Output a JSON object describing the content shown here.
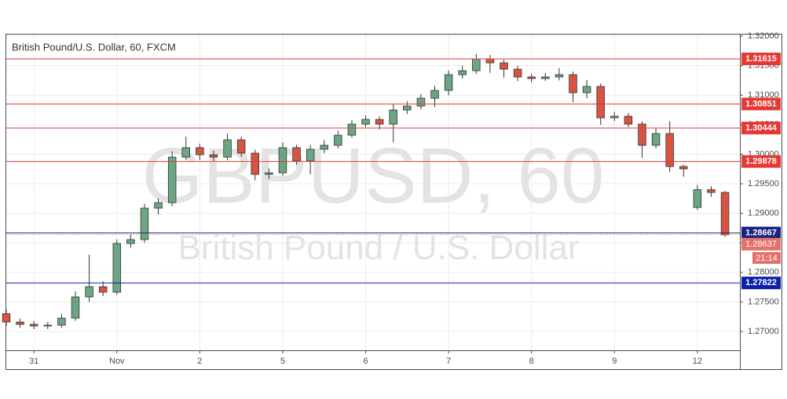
{
  "chart_data": {
    "type": "candlestick",
    "title": "British Pound/U.S. Dollar, 60, FXCM",
    "watermark": "GBPUSD, 60",
    "watermark_subtitle": "British Pound / U.S. Dollar",
    "x": [
      0,
      4,
      8,
      12,
      16,
      20,
      24,
      28,
      32,
      36,
      40,
      44,
      48,
      52,
      56,
      60,
      64,
      68,
      72,
      76,
      80,
      84,
      88,
      92,
      96,
      100,
      104,
      108,
      112,
      116,
      120,
      124,
      128,
      132,
      136,
      140,
      144,
      148,
      152,
      156,
      160,
      164,
      168,
      172,
      176,
      180,
      184,
      188,
      192,
      196,
      200,
      204,
      208
    ],
    "open": [
      1.273,
      1.2716,
      1.2712,
      1.27093,
      1.27106,
      1.27226,
      1.27585,
      1.27758,
      1.27665,
      1.28489,
      1.28556,
      1.29088,
      1.29181,
      1.29952,
      1.30112,
      1.29992,
      1.29952,
      1.30245,
      1.30019,
      1.2966,
      1.29686,
      1.30112,
      1.29886,
      1.30085,
      1.30152,
      1.30324,
      1.30511,
      1.3059,
      1.30511,
      1.3075,
      1.30816,
      1.30949,
      1.31082,
      1.31348,
      1.31415,
      1.31614,
      1.31548,
      1.31441,
      1.31309,
      1.31282,
      1.31309,
      1.31348,
      1.31043,
      1.31149,
      1.30617,
      1.30644,
      1.30511,
      1.30152,
      1.30351,
      1.29793,
      1.291,
      1.294,
      1.29354
    ],
    "high": [
      1.2738,
      1.2722,
      1.2718,
      1.2716,
      1.273,
      1.2768,
      1.283,
      1.2785,
      1.2856,
      1.2864,
      1.2916,
      1.2925,
      1.3005,
      1.303,
      1.3018,
      1.3006,
      1.3035,
      1.303,
      1.3008,
      1.2976,
      1.302,
      1.3016,
      1.3016,
      1.3024,
      1.304,
      1.3058,
      1.3066,
      1.3064,
      1.3085,
      1.309,
      1.3102,
      1.3116,
      1.3142,
      1.315,
      1.317,
      1.3168,
      1.316,
      1.315,
      1.3136,
      1.3138,
      1.3146,
      1.314,
      1.3126,
      1.312,
      1.3072,
      1.307,
      1.3056,
      1.3044,
      1.3056,
      1.2982,
      1.2948,
      1.2946,
      1.2938
    ],
    "low": [
      1.271,
      1.2706,
      1.2704,
      1.2704,
      1.2706,
      1.2718,
      1.275,
      1.276,
      1.2762,
      1.2842,
      1.285,
      1.2898,
      1.2912,
      1.299,
      1.299,
      1.2988,
      1.299,
      1.2996,
      1.2956,
      1.2958,
      1.2964,
      1.2982,
      1.2966,
      1.3002,
      1.301,
      1.3028,
      1.3046,
      1.3042,
      1.302,
      1.3068,
      1.3076,
      1.308,
      1.31,
      1.3128,
      1.3136,
      1.3138,
      1.313,
      1.3124,
      1.3122,
      1.3124,
      1.3125,
      1.3088,
      1.3095,
      1.305,
      1.3056,
      1.3046,
      1.2994,
      1.301,
      1.297,
      1.2962,
      1.2906,
      1.2928,
      1.286
    ],
    "close": [
      1.2716,
      1.2712,
      1.27093,
      1.27106,
      1.27226,
      1.27585,
      1.27758,
      1.27665,
      1.28489,
      1.28556,
      1.29088,
      1.29181,
      1.29952,
      1.30112,
      1.29992,
      1.29952,
      1.30245,
      1.30019,
      1.2966,
      1.29686,
      1.30112,
      1.29886,
      1.30085,
      1.30152,
      1.30324,
      1.30511,
      1.3059,
      1.30511,
      1.3075,
      1.30816,
      1.30949,
      1.31082,
      1.31348,
      1.31415,
      1.31614,
      1.31548,
      1.31441,
      1.31309,
      1.31282,
      1.31309,
      1.31348,
      1.31043,
      1.31149,
      1.30617,
      1.30644,
      1.30511,
      1.30152,
      1.30351,
      1.29793,
      1.29753,
      1.294,
      1.29354,
      1.28637
    ],
    "up_color": "#6ba583",
    "down_color": "#d75442",
    "xlim": [
      0,
      212.3
    ],
    "xticks": [
      {
        "value": 8,
        "label": "31"
      },
      {
        "value": 32,
        "label": "Nov"
      },
      {
        "value": 56,
        "label": "2"
      },
      {
        "value": 80,
        "label": "5"
      },
      {
        "value": 104,
        "label": "6"
      },
      {
        "value": 128,
        "label": "7"
      },
      {
        "value": 152,
        "label": "8"
      },
      {
        "value": 176,
        "label": "9"
      },
      {
        "value": 200,
        "label": "12"
      }
    ],
    "ylim": [
      1.26681,
      1.32027
    ],
    "yticks": [
      {
        "value": 1.27,
        "label": "1.27000"
      },
      {
        "value": 1.275,
        "label": "1.27500"
      },
      {
        "value": 1.28,
        "label": "1.28000"
      },
      {
        "value": 1.285,
        "label": "1.28500"
      },
      {
        "value": 1.29,
        "label": "1.29000"
      },
      {
        "value": 1.295,
        "label": "1.29500"
      },
      {
        "value": 1.3,
        "label": "1.30000"
      },
      {
        "value": 1.305,
        "label": "1.30500"
      },
      {
        "value": 1.31,
        "label": "1.31000"
      },
      {
        "value": 1.315,
        "label": "1.31500"
      },
      {
        "value": 1.32,
        "label": "1.32000"
      }
    ],
    "grid": true,
    "levels": [
      {
        "value": 1.31615,
        "color": "#e53935"
      },
      {
        "value": 1.30851,
        "color": "#e53935"
      },
      {
        "value": 1.30444,
        "color": "#e53935"
      },
      {
        "value": 1.29878,
        "color": "#e53935"
      },
      {
        "value": 1.28667,
        "color": "#1a237e"
      },
      {
        "value": 1.27822,
        "color": "#0d1fa8"
      }
    ],
    "last_price": 1.28637,
    "last_price_color": "#e5726a",
    "countdown": "21:14"
  }
}
